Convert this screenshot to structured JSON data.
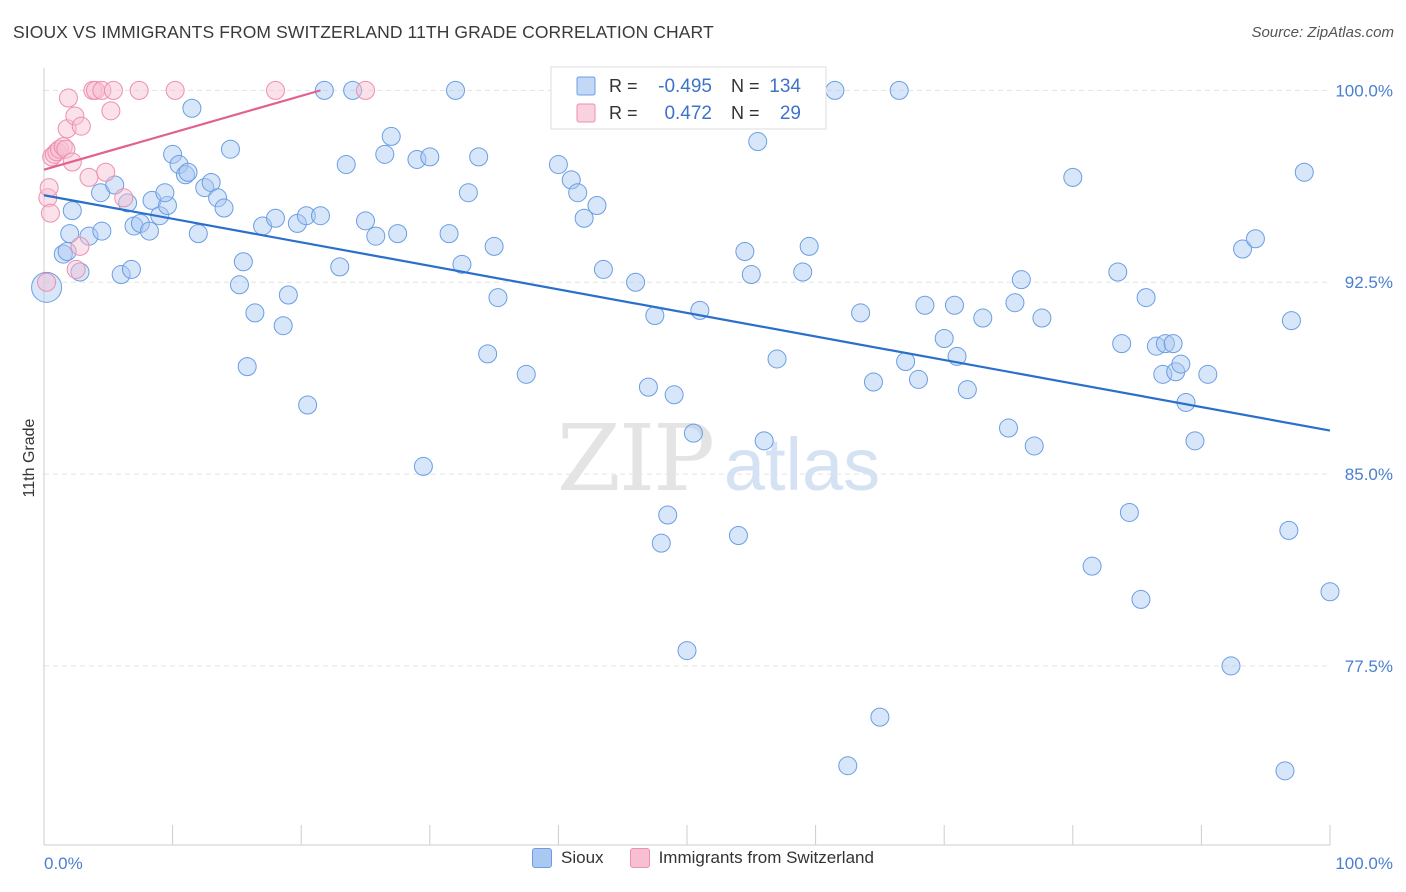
{
  "title": "SIOUX VS IMMIGRANTS FROM SWITZERLAND 11TH GRADE CORRELATION CHART",
  "source": "Source: ZipAtlas.com",
  "watermark": {
    "zip": "ZIP",
    "atlas": "atlas"
  },
  "chart_data": {
    "type": "scatter",
    "title": "SIOUX VS IMMIGRANTS FROM SWITZERLAND 11TH GRADE CORRELATION CHART",
    "xlabel": "",
    "ylabel": "11th Grade",
    "xlim": [
      0,
      100
    ],
    "ylim": [
      70.5,
      101.5
    ],
    "x_tick_labels": [
      "0.0%",
      "100.0%"
    ],
    "y_ticks": [
      100.0,
      92.5,
      85.0,
      77.5
    ],
    "y_tick_labels": [
      "100.0%",
      "92.5%",
      "85.0%",
      "77.5%"
    ],
    "grid": true,
    "legend_placement": "bottom",
    "stats": [
      {
        "r_label": "R =",
        "r": "-0.495",
        "n_label": "N =",
        "n": "134",
        "color": "#6b9ee3"
      },
      {
        "r_label": "R =",
        "r": "0.472",
        "n_label": "N =",
        "n": "29",
        "color": "#ee8fae"
      }
    ],
    "series": [
      {
        "name": "Sioux",
        "color": "#6b9ee3",
        "fill": "#a9c8f2",
        "trend": {
          "x": [
            0,
            100
          ],
          "y": [
            95.9,
            86.7
          ],
          "color": "#2a6fcc"
        },
        "points": [
          [
            0.2,
            92.3
          ],
          [
            1.5,
            93.6
          ],
          [
            1.8,
            93.7
          ],
          [
            2.0,
            94.4
          ],
          [
            2.2,
            95.3
          ],
          [
            2.8,
            92.9
          ],
          [
            3.5,
            94.3
          ],
          [
            4.5,
            94.5
          ],
          [
            4.4,
            96.0
          ],
          [
            5.5,
            96.3
          ],
          [
            6.0,
            92.8
          ],
          [
            6.5,
            95.6
          ],
          [
            7.0,
            94.7
          ],
          [
            6.8,
            93.0
          ],
          [
            7.5,
            94.8
          ],
          [
            8.2,
            94.5
          ],
          [
            8.4,
            95.7
          ],
          [
            9.0,
            95.1
          ],
          [
            9.6,
            95.5
          ],
          [
            10.0,
            97.5
          ],
          [
            10.5,
            97.1
          ],
          [
            11.0,
            96.7
          ],
          [
            11.2,
            96.8
          ],
          [
            11.5,
            99.3
          ],
          [
            12.0,
            94.4
          ],
          [
            12.5,
            96.2
          ],
          [
            13.0,
            96.4
          ],
          [
            13.5,
            95.8
          ],
          [
            14.0,
            95.4
          ],
          [
            14.5,
            97.7
          ],
          [
            15.5,
            93.3
          ],
          [
            15.2,
            92.4
          ],
          [
            15.8,
            89.2
          ],
          [
            16.4,
            91.3
          ],
          [
            17.0,
            94.7
          ],
          [
            18.0,
            95.0
          ],
          [
            18.6,
            90.8
          ],
          [
            19.0,
            92.0
          ],
          [
            19.7,
            94.8
          ],
          [
            20.4,
            95.1
          ],
          [
            21.5,
            95.1
          ],
          [
            21.8,
            100.0
          ],
          [
            23.0,
            93.1
          ],
          [
            23.5,
            97.1
          ],
          [
            24.0,
            100.0
          ],
          [
            25.0,
            94.9
          ],
          [
            25.8,
            94.3
          ],
          [
            26.5,
            97.5
          ],
          [
            27.0,
            98.2
          ],
          [
            27.5,
            94.4
          ],
          [
            20.5,
            87.7
          ],
          [
            29.0,
            97.3
          ],
          [
            29.5,
            85.3
          ],
          [
            30.0,
            97.4
          ],
          [
            31.5,
            94.4
          ],
          [
            32.0,
            100.0
          ],
          [
            32.5,
            93.2
          ],
          [
            33.0,
            96.0
          ],
          [
            33.8,
            97.4
          ],
          [
            34.5,
            89.7
          ],
          [
            35.0,
            93.9
          ],
          [
            35.3,
            91.9
          ],
          [
            37.5,
            88.9
          ],
          [
            40.0,
            97.1
          ],
          [
            41.0,
            96.5
          ],
          [
            41.5,
            96.0
          ],
          [
            42.0,
            95.0
          ],
          [
            43.0,
            95.5
          ],
          [
            43.5,
            93.0
          ],
          [
            45.0,
            100.0
          ],
          [
            46.0,
            92.5
          ],
          [
            47.0,
            88.4
          ],
          [
            47.5,
            91.2
          ],
          [
            48.0,
            82.3
          ],
          [
            48.5,
            83.4
          ],
          [
            49.0,
            88.1
          ],
          [
            50.0,
            78.1
          ],
          [
            50.5,
            86.6
          ],
          [
            51.0,
            91.4
          ],
          [
            54.0,
            82.6
          ],
          [
            54.5,
            93.7
          ],
          [
            55.0,
            92.8
          ],
          [
            55.5,
            98.0
          ],
          [
            56.0,
            86.3
          ],
          [
            57.0,
            89.5
          ],
          [
            59.0,
            92.9
          ],
          [
            59.5,
            93.9
          ],
          [
            61.5,
            100.0
          ],
          [
            62.5,
            73.6
          ],
          [
            63.5,
            91.3
          ],
          [
            64.5,
            88.6
          ],
          [
            65.0,
            75.5
          ],
          [
            66.5,
            100.0
          ],
          [
            67.0,
            89.4
          ],
          [
            68.0,
            88.7
          ],
          [
            68.5,
            91.6
          ],
          [
            70.0,
            90.3
          ],
          [
            70.8,
            91.6
          ],
          [
            71.0,
            89.6
          ],
          [
            71.8,
            88.3
          ],
          [
            73.0,
            91.1
          ],
          [
            75.0,
            86.8
          ],
          [
            75.5,
            91.7
          ],
          [
            76.0,
            92.6
          ],
          [
            77.0,
            86.1
          ],
          [
            77.6,
            91.1
          ],
          [
            80.0,
            96.6
          ],
          [
            81.5,
            81.4
          ],
          [
            83.5,
            92.9
          ],
          [
            83.8,
            90.1
          ],
          [
            84.4,
            83.5
          ],
          [
            85.3,
            80.1
          ],
          [
            85.7,
            91.9
          ],
          [
            86.5,
            90.0
          ],
          [
            87.0,
            88.9
          ],
          [
            87.2,
            90.1
          ],
          [
            87.8,
            90.1
          ],
          [
            88.0,
            89.0
          ],
          [
            88.4,
            89.3
          ],
          [
            88.8,
            87.8
          ],
          [
            89.5,
            86.3
          ],
          [
            90.5,
            88.9
          ],
          [
            92.3,
            77.5
          ],
          [
            93.2,
            93.8
          ],
          [
            94.2,
            94.2
          ],
          [
            96.5,
            73.4
          ],
          [
            96.8,
            82.8
          ],
          [
            97.0,
            91.0
          ],
          [
            98.0,
            96.8
          ],
          [
            100.0,
            80.4
          ],
          [
            45.0,
            100.0
          ],
          [
            9.4,
            96.0
          ]
        ]
      },
      {
        "name": "Immigrants from Switzerland",
        "color": "#ee8fae",
        "fill": "#f7bfd1",
        "trend": {
          "x": [
            0,
            21.5
          ],
          "y": [
            96.9,
            100.0
          ],
          "color": "#e0638e"
        },
        "points": [
          [
            0.2,
            92.5
          ],
          [
            0.3,
            95.8
          ],
          [
            0.4,
            96.2
          ],
          [
            0.5,
            95.2
          ],
          [
            0.6,
            97.4
          ],
          [
            0.8,
            97.5
          ],
          [
            1.0,
            97.6
          ],
          [
            1.2,
            97.7
          ],
          [
            1.5,
            97.8
          ],
          [
            1.7,
            97.7
          ],
          [
            1.8,
            98.5
          ],
          [
            1.9,
            99.7
          ],
          [
            2.2,
            97.2
          ],
          [
            2.4,
            99.0
          ],
          [
            2.5,
            93.0
          ],
          [
            2.8,
            93.9
          ],
          [
            2.9,
            98.6
          ],
          [
            3.5,
            96.6
          ],
          [
            3.8,
            100.0
          ],
          [
            4.0,
            100.0
          ],
          [
            4.5,
            100.0
          ],
          [
            4.8,
            96.8
          ],
          [
            5.2,
            99.2
          ],
          [
            5.4,
            100.0
          ],
          [
            6.2,
            95.8
          ],
          [
            7.4,
            100.0
          ],
          [
            10.2,
            100.0
          ],
          [
            18.0,
            100.0
          ],
          [
            25.0,
            100.0
          ]
        ]
      }
    ]
  }
}
